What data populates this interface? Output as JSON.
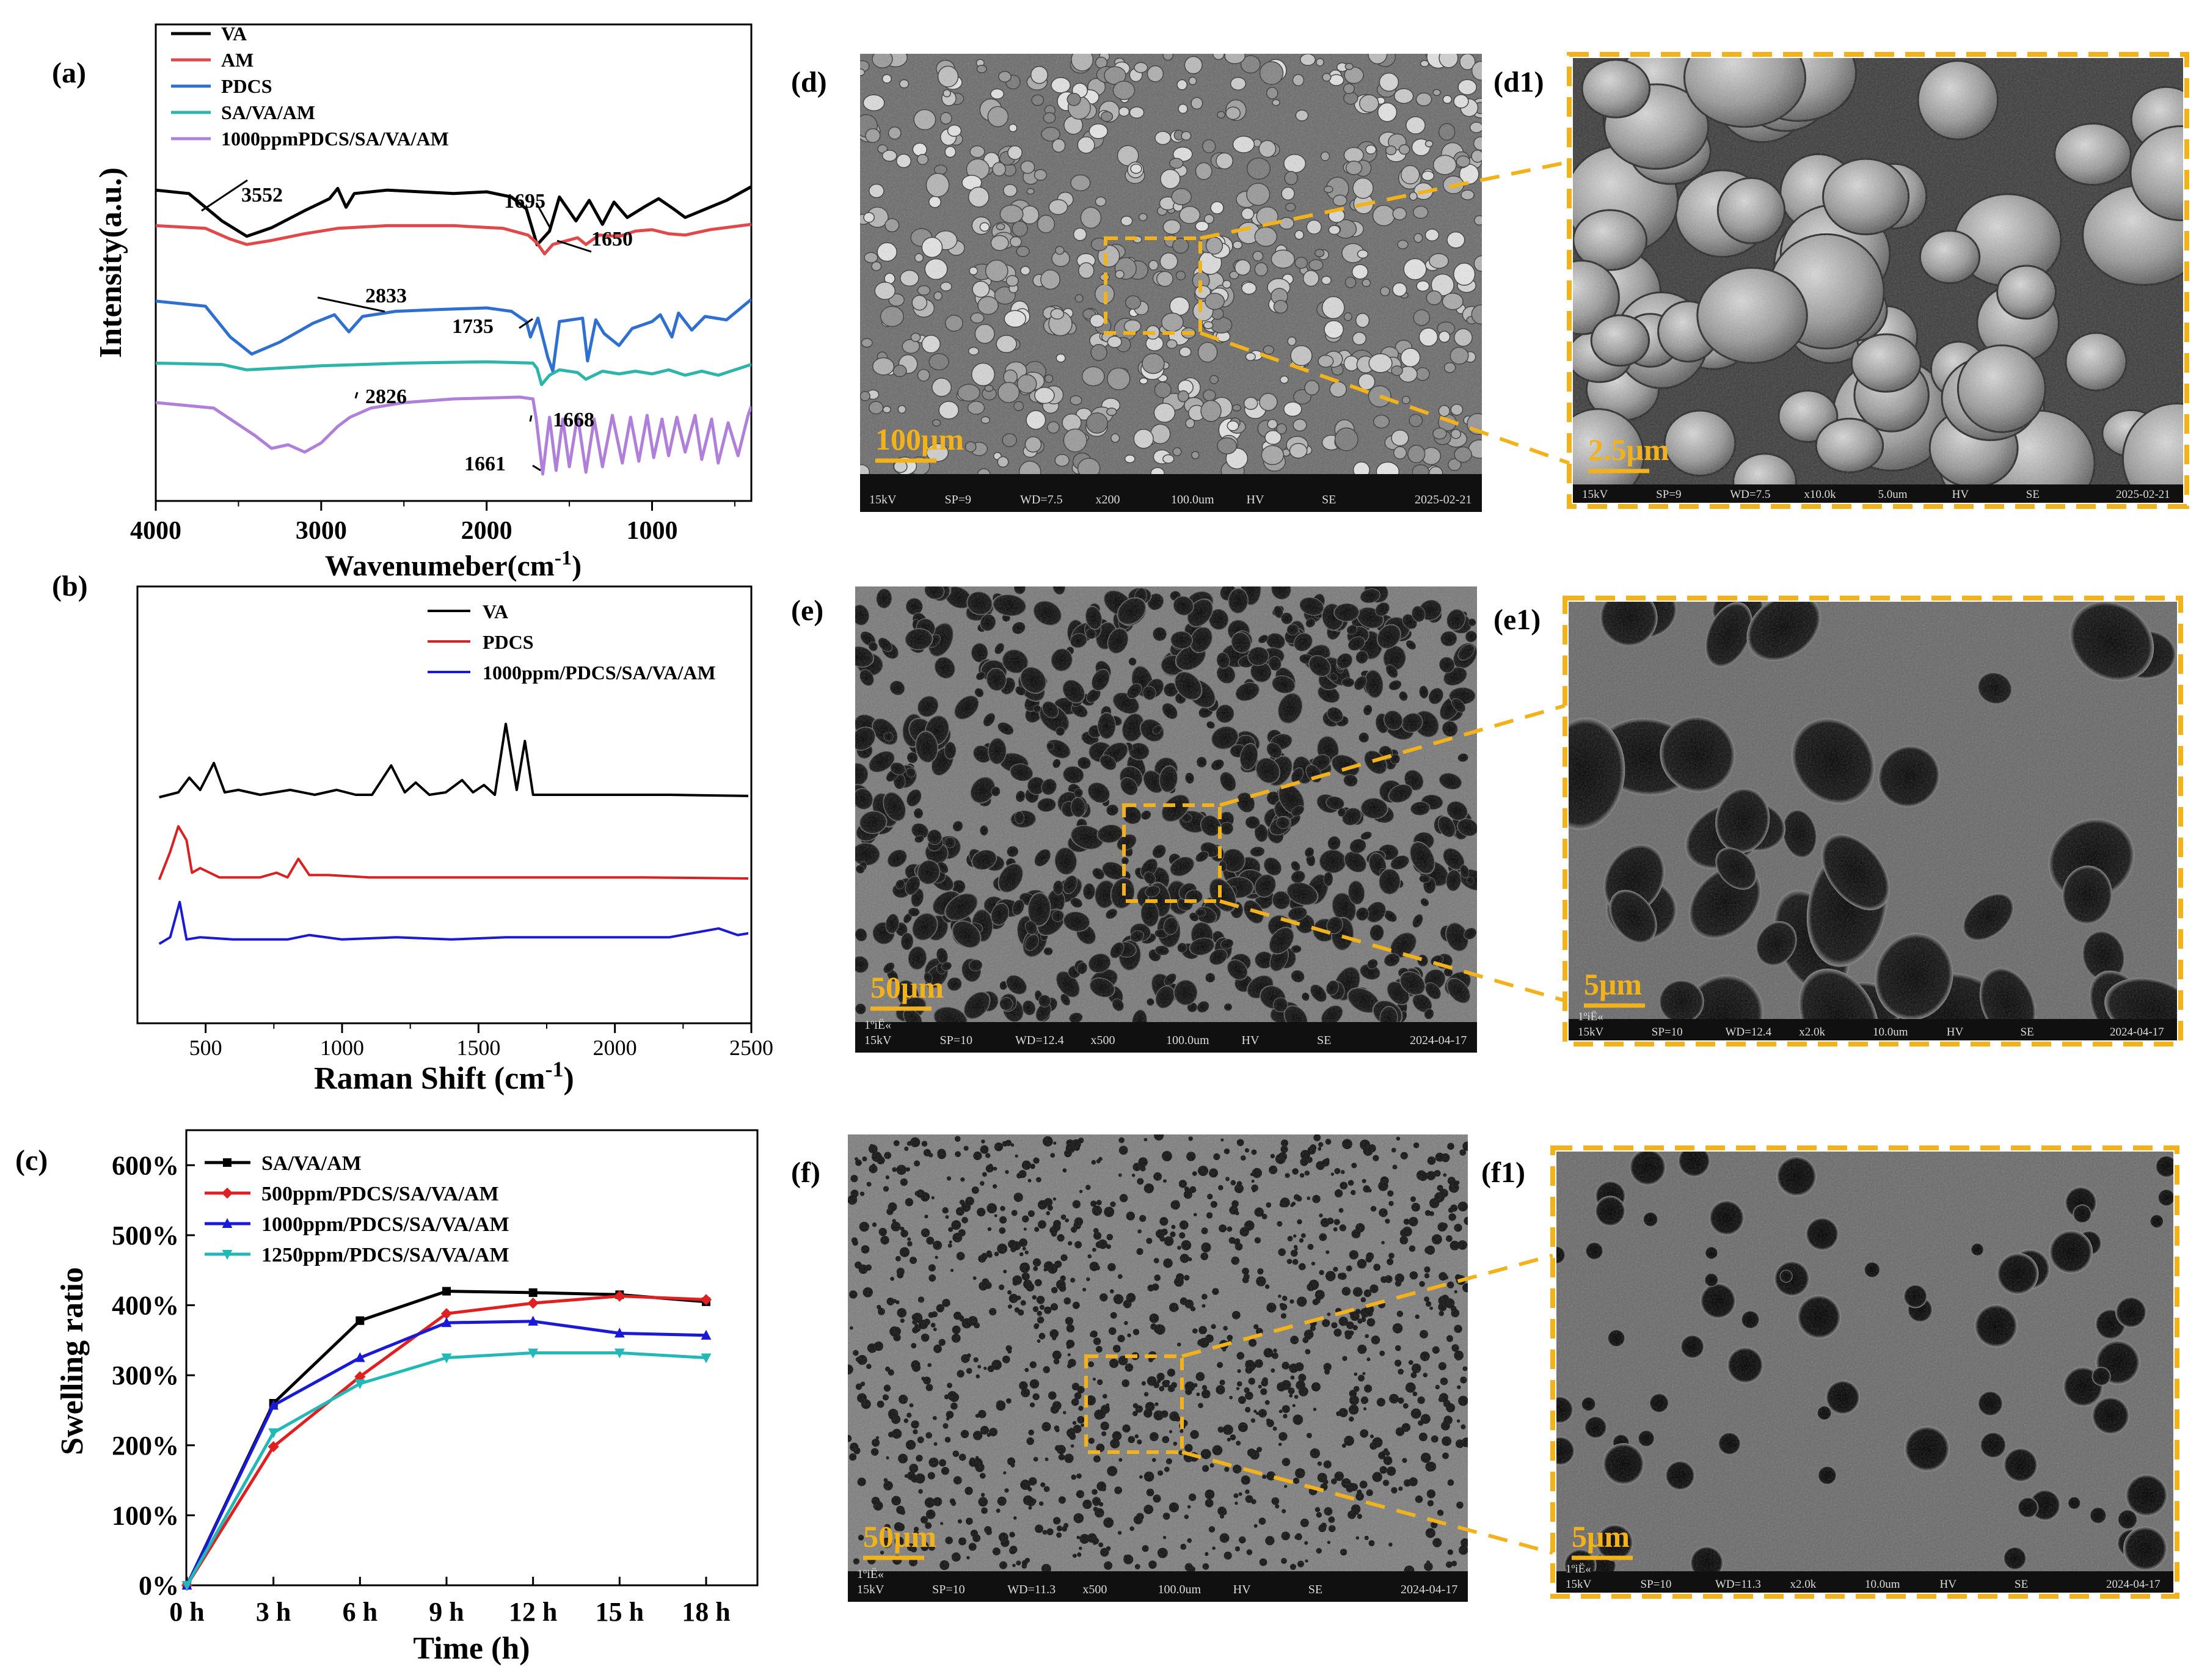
{
  "panels": {
    "a": "(a)",
    "b": "(b)",
    "c": "(c)",
    "d": "(d)",
    "d1": "(d1)",
    "e": "(e)",
    "e1": "(e1)",
    "f": "(f)",
    "f1": "(f1)"
  },
  "chart_data": [
    {
      "id": "a",
      "type": "line",
      "xlabel": "Wavenumeber(cm-1)",
      "ylabel": "Intensity(a.u.)",
      "xlim": [
        4000,
        400
      ],
      "xticks": [
        4000,
        3000,
        2000,
        1000
      ],
      "yticks": "none",
      "legend": "top-left",
      "series": [
        {
          "name": "VA",
          "color": "#000000",
          "points": [
            [
              4000,
              0.4
            ],
            [
              3800,
              0.6
            ],
            [
              3600,
              2.2
            ],
            [
              3450,
              3.1
            ],
            [
              3300,
              2.6
            ],
            [
              3100,
              1.6
            ],
            [
              2950,
              0.9
            ],
            [
              2900,
              0.3
            ],
            [
              2850,
              1.4
            ],
            [
              2800,
              0.6
            ],
            [
              2600,
              0.4
            ],
            [
              2400,
              0.5
            ],
            [
              2200,
              0.6
            ],
            [
              2000,
              0.5
            ],
            [
              1850,
              0.8
            ],
            [
              1760,
              1.5
            ],
            [
              1695,
              3.6
            ],
            [
              1620,
              2.8
            ],
            [
              1560,
              0.8
            ],
            [
              1460,
              2.2
            ],
            [
              1380,
              1.0
            ],
            [
              1300,
              2.4
            ],
            [
              1230,
              1.1
            ],
            [
              1150,
              2.0
            ],
            [
              1050,
              1.4
            ],
            [
              960,
              0.9
            ],
            [
              870,
              1.5
            ],
            [
              800,
              2.0
            ],
            [
              700,
              1.6
            ],
            [
              550,
              1.0
            ],
            [
              400,
              0.2
            ]
          ]
        },
        {
          "name": "AM",
          "color": "#e0484a",
          "points": [
            [
              4000,
              0.2
            ],
            [
              3700,
              0.4
            ],
            [
              3550,
              1.2
            ],
            [
              3450,
              1.6
            ],
            [
              3300,
              1.3
            ],
            [
              3100,
              0.8
            ],
            [
              2900,
              0.4
            ],
            [
              2600,
              0.2
            ],
            [
              2200,
              0.2
            ],
            [
              1900,
              0.4
            ],
            [
              1750,
              0.9
            ],
            [
              1695,
              1.5
            ],
            [
              1650,
              2.3
            ],
            [
              1600,
              1.6
            ],
            [
              1450,
              1.1
            ],
            [
              1400,
              1.6
            ],
            [
              1320,
              0.9
            ],
            [
              1200,
              1.0
            ],
            [
              1100,
              0.6
            ],
            [
              1000,
              0.5
            ],
            [
              900,
              0.8
            ],
            [
              800,
              0.9
            ],
            [
              650,
              0.5
            ],
            [
              400,
              0.1
            ]
          ]
        },
        {
          "name": "PDCS",
          "color": "#2f6fd0",
          "points": [
            [
              4000,
              0.1
            ],
            [
              3700,
              0.4
            ],
            [
              3550,
              2.2
            ],
            [
              3420,
              3.2
            ],
            [
              3250,
              2.5
            ],
            [
              3050,
              1.4
            ],
            [
              2920,
              0.9
            ],
            [
              2833,
              1.9
            ],
            [
              2750,
              1.0
            ],
            [
              2550,
              0.7
            ],
            [
              2300,
              0.6
            ],
            [
              2000,
              0.5
            ],
            [
              1850,
              0.7
            ],
            [
              1760,
              1.3
            ],
            [
              1735,
              2.2
            ],
            [
              1690,
              1.1
            ],
            [
              1630,
              3.4
            ],
            [
              1600,
              4.2
            ],
            [
              1560,
              1.3
            ],
            [
              1420,
              1.1
            ],
            [
              1390,
              3.6
            ],
            [
              1340,
              1.2
            ],
            [
              1290,
              2.0
            ],
            [
              1200,
              2.7
            ],
            [
              1120,
              1.7
            ],
            [
              1060,
              1.5
            ],
            [
              1000,
              1.3
            ],
            [
              950,
              0.9
            ],
            [
              880,
              2.2
            ],
            [
              840,
              0.8
            ],
            [
              760,
              1.8
            ],
            [
              680,
              1.0
            ],
            [
              550,
              1.2
            ],
            [
              400,
              0.0
            ]
          ]
        },
        {
          "name": "SA/VA/AM",
          "color": "#2cb5a8",
          "points": [
            [
              4000,
              0.2
            ],
            [
              3600,
              0.3
            ],
            [
              3450,
              0.7
            ],
            [
              3300,
              0.6
            ],
            [
              3000,
              0.4
            ],
            [
              2500,
              0.2
            ],
            [
              2000,
              0.1
            ],
            [
              1720,
              0.2
            ],
            [
              1695,
              0.6
            ],
            [
              1668,
              1.8
            ],
            [
              1620,
              1.1
            ],
            [
              1560,
              0.7
            ],
            [
              1450,
              0.9
            ],
            [
              1400,
              1.4
            ],
            [
              1300,
              0.8
            ],
            [
              1200,
              1.0
            ],
            [
              1100,
              0.8
            ],
            [
              1000,
              1.0
            ],
            [
              900,
              0.7
            ],
            [
              800,
              1.1
            ],
            [
              700,
              0.8
            ],
            [
              600,
              1.1
            ],
            [
              400,
              0.3
            ]
          ]
        },
        {
          "name": "1000ppmPDCS/SA/VA/AM",
          "color": "#b07fd9",
          "points": [
            [
              4000,
              0.3
            ],
            [
              3650,
              0.6
            ],
            [
              3400,
              2.1
            ],
            [
              3300,
              2.8
            ],
            [
              3200,
              2.6
            ],
            [
              3100,
              3.0
            ],
            [
              3000,
              2.5
            ],
            [
              2900,
              1.6
            ],
            [
              2826,
              1.1
            ],
            [
              2700,
              0.6
            ],
            [
              2500,
              0.3
            ],
            [
              2200,
              0.1
            ],
            [
              1800,
              0.0
            ],
            [
              1720,
              0.1
            ],
            [
              1700,
              1.2
            ],
            [
              1661,
              4.2
            ],
            [
              1620,
              1.1
            ],
            [
              1580,
              4.0
            ],
            [
              1540,
              1.2
            ],
            [
              1500,
              3.8
            ],
            [
              1450,
              1.0
            ],
            [
              1400,
              4.1
            ],
            [
              1350,
              1.2
            ],
            [
              1300,
              3.8
            ],
            [
              1240,
              1.0
            ],
            [
              1180,
              3.6
            ],
            [
              1130,
              1.1
            ],
            [
              1080,
              3.5
            ],
            [
              1030,
              1.0
            ],
            [
              990,
              3.3
            ],
            [
              940,
              1.2
            ],
            [
              900,
              3.2
            ],
            [
              850,
              1.1
            ],
            [
              800,
              3.0
            ],
            [
              740,
              1.0
            ],
            [
              700,
              3.4
            ],
            [
              640,
              1.2
            ],
            [
              600,
              3.6
            ],
            [
              540,
              1.4
            ],
            [
              480,
              3.2
            ],
            [
              420,
              1.0
            ],
            [
              400,
              0.5
            ]
          ]
        }
      ],
      "annotations": [
        "3552",
        "1695",
        "1650",
        "2833",
        "1735",
        "1668",
        "2826",
        "1661"
      ]
    },
    {
      "id": "b",
      "type": "line",
      "xlabel": "Raman Shift (cm-1)",
      "ylabel": "",
      "xlim": [
        250,
        2500
      ],
      "xticks": [
        500,
        1000,
        1500,
        2000,
        2500
      ],
      "yticks": "none",
      "legend": "top-right",
      "series": [
        {
          "name": "VA",
          "color": "#000000",
          "points": [
            [
              330,
              0
            ],
            [
              400,
              0.2
            ],
            [
              440,
              0.8
            ],
            [
              480,
              0.3
            ],
            [
              530,
              1.4
            ],
            [
              570,
              0.2
            ],
            [
              620,
              0.3
            ],
            [
              700,
              0.1
            ],
            [
              810,
              0.3
            ],
            [
              900,
              0.1
            ],
            [
              980,
              0.3
            ],
            [
              1050,
              0.1
            ],
            [
              1110,
              0.1
            ],
            [
              1180,
              1.3
            ],
            [
              1230,
              0.2
            ],
            [
              1270,
              0.6
            ],
            [
              1320,
              0.1
            ],
            [
              1380,
              0.2
            ],
            [
              1440,
              0.7
            ],
            [
              1480,
              0.2
            ],
            [
              1520,
              0.5
            ],
            [
              1560,
              0.1
            ],
            [
              1600,
              3.0
            ],
            [
              1640,
              0.3
            ],
            [
              1670,
              2.3
            ],
            [
              1700,
              0.1
            ],
            [
              1800,
              0.1
            ],
            [
              2000,
              0.1
            ],
            [
              2200,
              0.1
            ],
            [
              2500,
              0.05
            ]
          ]
        },
        {
          "name": "PDCS",
          "color": "#d62222",
          "points": [
            [
              330,
              0
            ],
            [
              370,
              1.2
            ],
            [
              400,
              2.3
            ],
            [
              430,
              1.7
            ],
            [
              450,
              0.3
            ],
            [
              480,
              0.5
            ],
            [
              550,
              0.1
            ],
            [
              700,
              0.1
            ],
            [
              760,
              0.3
            ],
            [
              800,
              0.1
            ],
            [
              840,
              0.9
            ],
            [
              880,
              0.2
            ],
            [
              950,
              0.2
            ],
            [
              1100,
              0.1
            ],
            [
              1300,
              0.1
            ],
            [
              1600,
              0.1
            ],
            [
              1800,
              0.1
            ],
            [
              2100,
              0.1
            ],
            [
              2500,
              0.05
            ]
          ]
        },
        {
          "name": "1000ppm/PDCS/SA/VA/AM",
          "color": "#1a1ad6",
          "points": [
            [
              330,
              0
            ],
            [
              370,
              0.3
            ],
            [
              405,
              1.9
            ],
            [
              430,
              0.2
            ],
            [
              480,
              0.3
            ],
            [
              600,
              0.2
            ],
            [
              800,
              0.2
            ],
            [
              880,
              0.4
            ],
            [
              1000,
              0.2
            ],
            [
              1200,
              0.3
            ],
            [
              1400,
              0.2
            ],
            [
              1600,
              0.3
            ],
            [
              1800,
              0.3
            ],
            [
              2000,
              0.3
            ],
            [
              2200,
              0.3
            ],
            [
              2380,
              0.7
            ],
            [
              2450,
              0.4
            ],
            [
              2500,
              0.5
            ]
          ]
        }
      ]
    },
    {
      "id": "c",
      "type": "line",
      "xlabel": "Time (h)",
      "ylabel": "Swelling ratio",
      "categories": [
        "0 h",
        "3 h",
        "6 h",
        "9 h",
        "12 h",
        "15 h",
        "18 h"
      ],
      "ylim": [
        0,
        650
      ],
      "yticks": [
        "0%",
        "100%",
        "200%",
        "300%",
        "400%",
        "500%",
        "600%"
      ],
      "legend": "top-left",
      "series": [
        {
          "name": "SA/VA/AM",
          "color": "#000000",
          "marker": "square",
          "values": [
            0,
            260,
            378,
            420,
            418,
            415,
            405
          ]
        },
        {
          "name": "500ppm/PDCS/SA/VA/AM",
          "color": "#e02020",
          "marker": "diamond",
          "values": [
            0,
            198,
            298,
            388,
            403,
            413,
            408
          ]
        },
        {
          "name": "1000ppm/PDCS/SA/VA/AM",
          "color": "#1a1ad6",
          "marker": "triangle",
          "values": [
            0,
            257,
            325,
            375,
            377,
            360,
            357
          ]
        },
        {
          "name": "1250ppm/PDCS/SA/VA/AM",
          "color": "#22b8b8",
          "marker": "triangle-down",
          "values": [
            0,
            218,
            288,
            325,
            332,
            332,
            325
          ]
        }
      ]
    }
  ],
  "sem": {
    "d": {
      "scale": "100μm",
      "info": [
        "15kV",
        "SP=9",
        "WD=7.5",
        "x200",
        "100.0um",
        "HV",
        "SE",
        "2025-02-21"
      ],
      "pattern": "grains",
      "seed": 11
    },
    "d1": {
      "scale": "2.5μm",
      "info": [
        "15kV",
        "SP=9",
        "WD=7.5",
        "x10.0k",
        "5.0um",
        "HV",
        "SE",
        "2025-02-21"
      ],
      "pattern": "bigGrains",
      "seed": 23
    },
    "e": {
      "prefix": "1ºiË«",
      "scale": "50μm",
      "info": [
        "15kV",
        "SP=10",
        "WD=12.4",
        "x500",
        "100.0um",
        "HV",
        "SE",
        "2024-04-17"
      ],
      "pattern": "foam",
      "seed": 37
    },
    "e1": {
      "prefix": "1ºiË«",
      "scale": "5μm",
      "info": [
        "15kV",
        "SP=10",
        "WD=12.4",
        "x2.0k",
        "10.0um",
        "HV",
        "SE",
        "2024-04-17"
      ],
      "pattern": "bigFoam",
      "seed": 41
    },
    "f": {
      "prefix": "1ºiË«",
      "scale": "50μm",
      "info": [
        "15kV",
        "SP=10",
        "WD=11.3",
        "x500",
        "100.0um",
        "HV",
        "SE",
        "2024-04-17"
      ],
      "pattern": "pores",
      "seed": 53
    },
    "f1": {
      "prefix": "1ºiË«",
      "scale": "5μm",
      "info": [
        "15kV",
        "SP=10",
        "WD=11.3",
        "x2.0k",
        "10.0um",
        "HV",
        "SE",
        "2024-04-17"
      ],
      "pattern": "bigPores",
      "seed": 67
    }
  },
  "colors": {
    "highlight": "#f2b21c",
    "semBar": "#101010",
    "semText": "#dddddd"
  }
}
